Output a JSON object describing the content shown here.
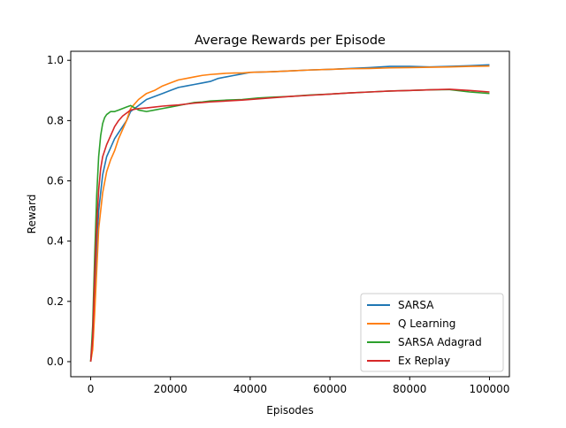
{
  "chart_data": {
    "type": "line",
    "title": "Average Rewards per Episode",
    "xlabel": "Episodes",
    "ylabel": "Reward",
    "xlim": [
      -5000,
      105000
    ],
    "ylim": [
      -0.05,
      1.03
    ],
    "xticks": [
      0,
      20000,
      40000,
      60000,
      80000,
      100000
    ],
    "xtick_labels": [
      "0",
      "20000",
      "40000",
      "60000",
      "80000",
      "100000"
    ],
    "yticks": [
      0.0,
      0.2,
      0.4,
      0.6,
      0.8,
      1.0
    ],
    "ytick_labels": [
      "0.0",
      "0.2",
      "0.4",
      "0.6",
      "0.8",
      "1.0"
    ],
    "grid": false,
    "legend_position": "lower-right",
    "series": [
      {
        "name": "SARSA",
        "color": "#1f77b4",
        "x": [
          0,
          500,
          1000,
          1500,
          2000,
          3000,
          4000,
          5000,
          6000,
          7000,
          8000,
          9000,
          10000,
          12000,
          14000,
          16000,
          18000,
          20000,
          22000,
          24000,
          26000,
          28000,
          30000,
          32000,
          34000,
          36000,
          38000,
          40000,
          45000,
          50000,
          55000,
          60000,
          65000,
          70000,
          75000,
          80000,
          85000,
          90000,
          95000,
          100000
        ],
        "y": [
          0.0,
          0.05,
          0.2,
          0.38,
          0.5,
          0.62,
          0.68,
          0.71,
          0.74,
          0.76,
          0.78,
          0.8,
          0.83,
          0.85,
          0.87,
          0.88,
          0.89,
          0.9,
          0.91,
          0.915,
          0.92,
          0.925,
          0.93,
          0.94,
          0.945,
          0.95,
          0.955,
          0.96,
          0.962,
          0.965,
          0.968,
          0.97,
          0.973,
          0.976,
          0.98,
          0.98,
          0.978,
          0.98,
          0.982,
          0.985
        ]
      },
      {
        "name": "Q Learning",
        "color": "#ff7f0e",
        "x": [
          0,
          500,
          1000,
          1500,
          2000,
          3000,
          4000,
          5000,
          6000,
          7000,
          8000,
          9000,
          10000,
          12000,
          14000,
          16000,
          18000,
          20000,
          22000,
          24000,
          26000,
          28000,
          30000,
          32000,
          34000,
          36000,
          38000,
          40000,
          45000,
          50000,
          55000,
          60000,
          65000,
          70000,
          75000,
          80000,
          85000,
          90000,
          95000,
          100000
        ],
        "y": [
          0.0,
          0.04,
          0.16,
          0.3,
          0.44,
          0.56,
          0.63,
          0.67,
          0.7,
          0.74,
          0.77,
          0.8,
          0.84,
          0.87,
          0.89,
          0.9,
          0.915,
          0.925,
          0.935,
          0.94,
          0.945,
          0.95,
          0.953,
          0.955,
          0.957,
          0.958,
          0.958,
          0.96,
          0.962,
          0.965,
          0.968,
          0.97,
          0.972,
          0.973,
          0.975,
          0.976,
          0.977,
          0.978,
          0.98,
          0.981
        ]
      },
      {
        "name": "SARSA Adagrad",
        "color": "#2ca02c",
        "x": [
          0,
          500,
          1000,
          1500,
          2000,
          2500,
          3000,
          3500,
          4000,
          5000,
          6000,
          7000,
          8000,
          9000,
          10000,
          12000,
          14000,
          16000,
          18000,
          20000,
          22000,
          24000,
          26000,
          28000,
          30000,
          34000,
          38000,
          42000,
          46000,
          50000,
          55000,
          60000,
          65000,
          70000,
          75000,
          80000,
          85000,
          90000,
          95000,
          100000
        ],
        "y": [
          0.0,
          0.12,
          0.35,
          0.55,
          0.68,
          0.75,
          0.79,
          0.81,
          0.82,
          0.83,
          0.83,
          0.835,
          0.84,
          0.845,
          0.85,
          0.835,
          0.83,
          0.835,
          0.84,
          0.845,
          0.85,
          0.855,
          0.86,
          0.862,
          0.865,
          0.868,
          0.87,
          0.875,
          0.878,
          0.88,
          0.885,
          0.888,
          0.892,
          0.895,
          0.898,
          0.9,
          0.902,
          0.903,
          0.895,
          0.89
        ]
      },
      {
        "name": "Ex Replay",
        "color": "#d62728",
        "x": [
          0,
          500,
          1000,
          1500,
          2000,
          2500,
          3000,
          4000,
          5000,
          6000,
          7000,
          8000,
          9000,
          10000,
          12000,
          14000,
          16000,
          18000,
          20000,
          22000,
          24000,
          26000,
          28000,
          30000,
          34000,
          38000,
          42000,
          46000,
          50000,
          55000,
          60000,
          65000,
          70000,
          75000,
          80000,
          85000,
          90000,
          95000,
          100000
        ],
        "y": [
          0.0,
          0.08,
          0.28,
          0.45,
          0.57,
          0.64,
          0.68,
          0.72,
          0.75,
          0.78,
          0.8,
          0.815,
          0.825,
          0.835,
          0.84,
          0.842,
          0.845,
          0.848,
          0.85,
          0.852,
          0.855,
          0.858,
          0.86,
          0.862,
          0.865,
          0.868,
          0.872,
          0.876,
          0.88,
          0.884,
          0.888,
          0.892,
          0.895,
          0.898,
          0.9,
          0.902,
          0.904,
          0.9,
          0.895
        ]
      }
    ]
  }
}
